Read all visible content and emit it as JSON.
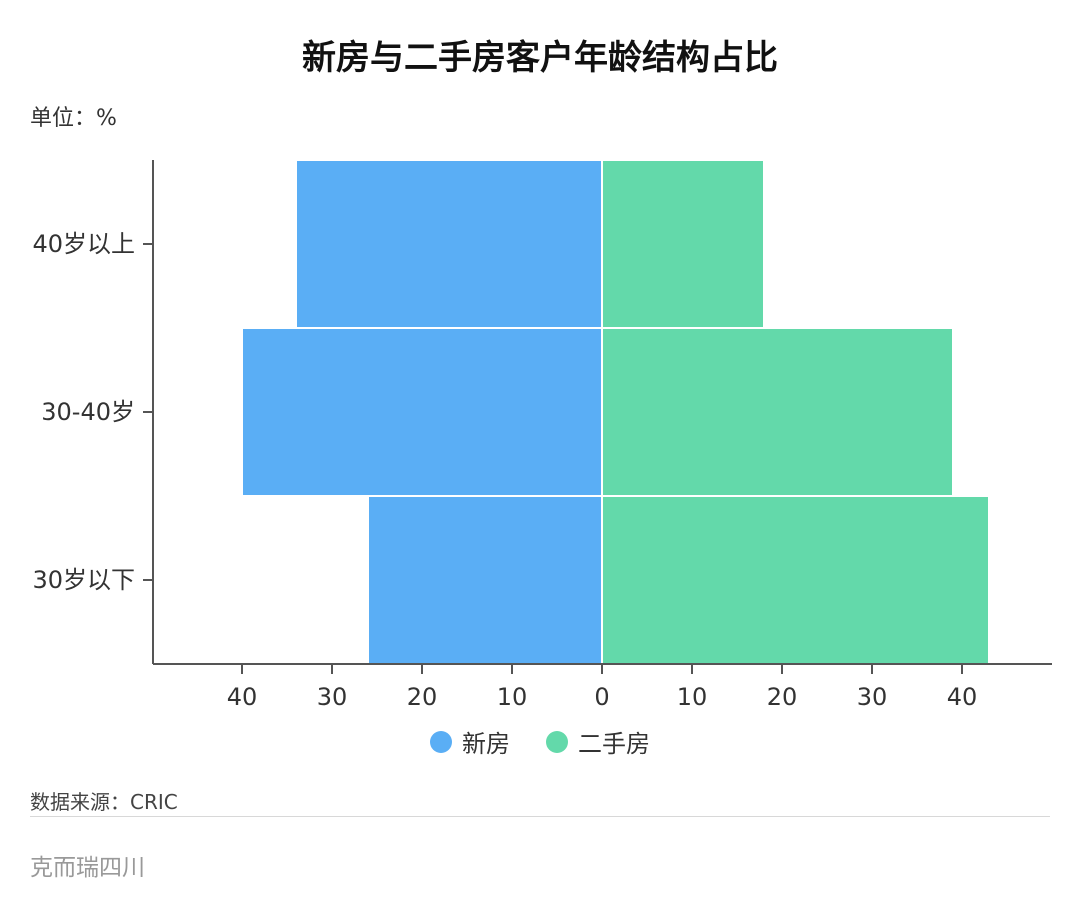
{
  "title": "新房与二手房客户年龄结构占比",
  "unit_label": "单位：%",
  "source_label": "数据来源：CRIC",
  "brand": "克而瑞四川",
  "chart_data": {
    "type": "bar",
    "orientation": "horizontal-diverging",
    "title": "新房与二手房客户年龄结构占比",
    "categories": [
      "40岁以上",
      "30-40岁",
      "30岁以下"
    ],
    "series": [
      {
        "name": "新房",
        "values": [
          34,
          40,
          26
        ],
        "color": "#5aaef5",
        "side": "left"
      },
      {
        "name": "二手房",
        "values": [
          18,
          39,
          43
        ],
        "color": "#63d9aa",
        "side": "right"
      }
    ],
    "x_ticks": [
      40,
      30,
      20,
      10,
      0,
      10,
      20,
      30,
      40
    ],
    "xlim": [
      -50,
      50
    ],
    "grid": false,
    "legend_position": "bottom-center"
  }
}
